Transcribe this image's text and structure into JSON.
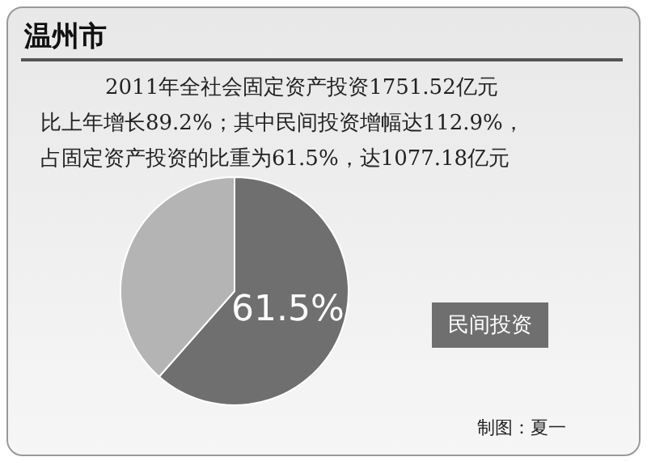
{
  "chart_data": {
    "type": "pie",
    "title": "温州市",
    "annotations": [
      "2011年全社会固定资产投资1751.52亿元",
      "比上年增长89.2%；其中民间投资增幅达112.9%，",
      "占固定资产投资的比重为61.5%，达1077.18亿元",
      "制图：夏一"
    ],
    "categories": [
      "民间投资",
      null
    ],
    "values": [
      61.5,
      38.5
    ],
    "colors": [
      "#6f6f6f",
      "#b4b4b4"
    ],
    "value_labels": [
      "61.5%",
      null
    ],
    "legend": false
  }
}
